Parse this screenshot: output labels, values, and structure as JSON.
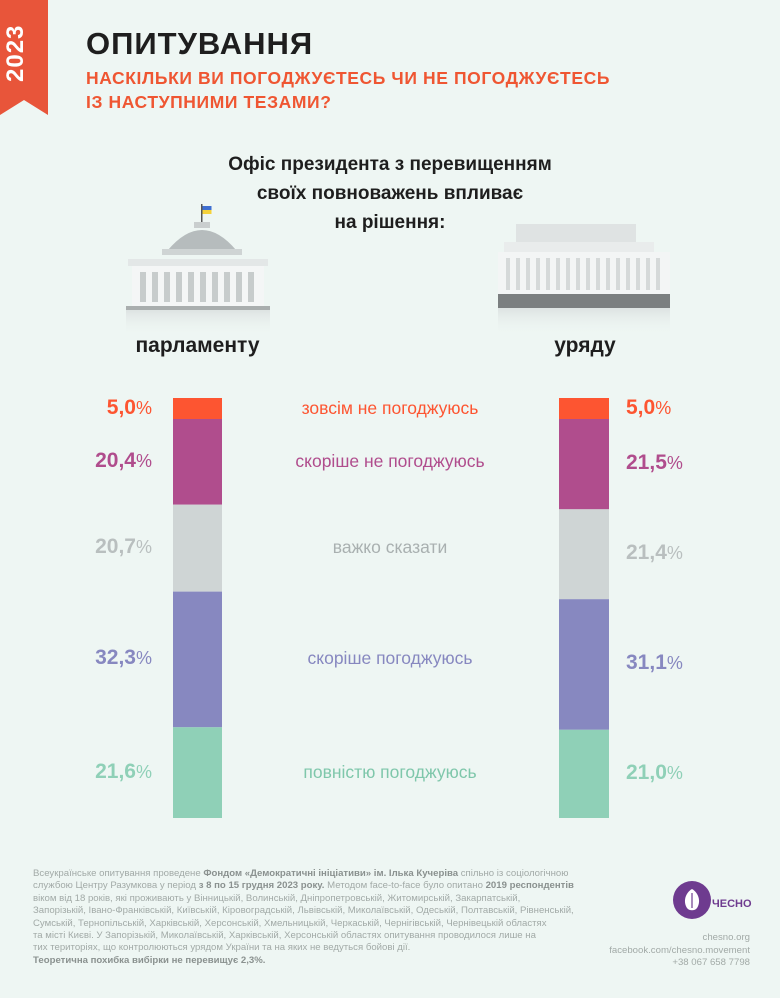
{
  "year": "2023",
  "title": "ОПИТУВАННЯ",
  "subtitle_line1": "НАСКІЛЬКИ ВИ ПОГОДЖУЄТЕСЬ ЧИ НЕ ПОГОДЖУЄТЕСЬ",
  "subtitle_line2": "ІЗ НАСТУПНИМИ ТЕЗАМИ?",
  "question_line1": "Офіс президента з перевищенням",
  "question_line2": "своїх  повноважень впливає",
  "question_line3": "на рішення:",
  "colors": {
    "accent": "#ef5632",
    "strongly_disagree": "#fd5531",
    "disagree": "#b04d8d",
    "hard_to_say": "#cfd5d5",
    "agree": "#8788c0",
    "strongly_agree": "#8fd0b7"
  },
  "chart_data": [
    {
      "type": "bar",
      "stacked": true,
      "panel_label": "парламенту",
      "categories": [
        "зовсім не погоджуюсь",
        "скоріше не погоджуюсь",
        "важко сказати",
        "скоріше погоджуюсь",
        "повністю погоджуюсь"
      ],
      "values": [
        5.0,
        20.4,
        20.7,
        32.3,
        21.6
      ],
      "value_labels": [
        "5,0",
        "20,4",
        "20,7",
        "32,3",
        "21,6"
      ]
    },
    {
      "type": "bar",
      "stacked": true,
      "panel_label": "уряду",
      "categories": [
        "зовсім не погоджуюсь",
        "скоріше не погоджуюсь",
        "важко сказати",
        "скоріше погоджуюсь",
        "повністю погоджуюсь"
      ],
      "values": [
        5.0,
        21.5,
        21.4,
        31.1,
        21.0
      ],
      "value_labels": [
        "5,0",
        "21,5",
        "21,4",
        "31,1",
        "21,0"
      ]
    }
  ],
  "percent_sign": "%",
  "footer": {
    "line1_a": "Всеукраїнське опитування проведене ",
    "line1_b": "Фондом «Демократичні ініціативи»",
    "line1_c": " ім. Ілька Кучеріва",
    "line1_d": " спільно із соціологічною",
    "line2_a": "службою Центру Разумкова у період ",
    "line2_b": "з 8 по 15 грудня 2023 року.",
    "line2_c": " Методом face-to-face було опитано ",
    "line2_d": "2019 респондентів",
    "line3": "віком від 18 років, які проживають у Вінницькій, Волинській, Дніпропетровській, Житомирській, Закарпатській,",
    "line4": "Запорізькій, Івано-Франківській, Київській, Кіровоградській, Львівській, Миколаївській, Одеській, Полтавській, Рівненській,",
    "line5": "Сумській, Тернопільській, Харківській, Херсонській, Хмельницькій, Черкаській, Чернігівській, Чернівецькій областях",
    "line6": "та місті Києві. У Запорізькій, Миколаївській, Харківській, Херсонській областях опитування проводилося лише на",
    "line7": "тих територіях, що контролюються урядом України та на яких не ведуться бойові дії.",
    "line8": "Теоретична похибка вибірки не перевищує 2,3%."
  },
  "contacts": {
    "site": "chesno.org",
    "facebook": "facebook.com/chesno.movement",
    "phone": "+38 067 658 7798"
  },
  "logo_text": "ЧЕСНО"
}
